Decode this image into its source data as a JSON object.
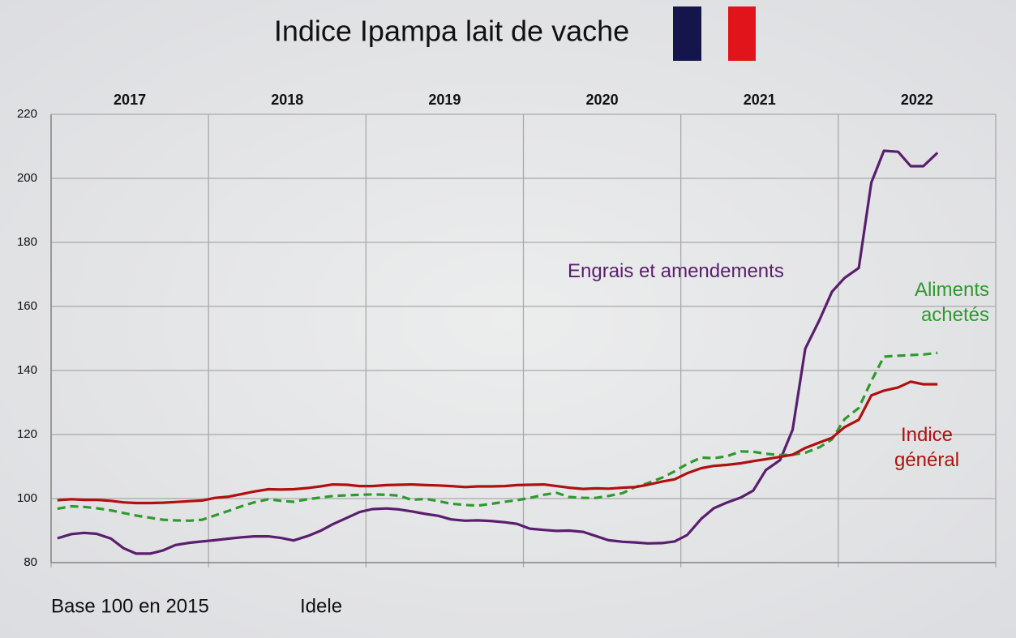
{
  "chart_data": {
    "type": "line",
    "title": "Indice Ipampa lait de vache",
    "xlim": [
      2017,
      2023
    ],
    "xgrid": [
      2017,
      2018,
      2019,
      2020,
      2021,
      2022,
      2023
    ],
    "xticks": [
      {
        "value": 2017.5,
        "label": "2017"
      },
      {
        "value": 2018.5,
        "label": "2018"
      },
      {
        "value": 2019.5,
        "label": "2019"
      },
      {
        "value": 2020.5,
        "label": "2020"
      },
      {
        "value": 2021.5,
        "label": "2021"
      },
      {
        "value": 2022.5,
        "label": "2022"
      }
    ],
    "ylim": [
      80,
      220
    ],
    "yticks": [
      80,
      100,
      120,
      140,
      160,
      180,
      200,
      220
    ],
    "grid": true,
    "x": [
      2017.04,
      2017.13,
      2017.21,
      2017.29,
      2017.38,
      2017.46,
      2017.54,
      2017.63,
      2017.71,
      2017.79,
      2017.88,
      2017.96,
      2018.04,
      2018.13,
      2018.21,
      2018.29,
      2018.38,
      2018.46,
      2018.54,
      2018.63,
      2018.71,
      2018.79,
      2018.88,
      2018.96,
      2019.04,
      2019.13,
      2019.21,
      2019.29,
      2019.38,
      2019.46,
      2019.54,
      2019.63,
      2019.71,
      2019.79,
      2019.88,
      2019.96,
      2020.04,
      2020.13,
      2020.21,
      2020.29,
      2020.38,
      2020.46,
      2020.54,
      2020.63,
      2020.71,
      2020.79,
      2020.88,
      2020.96,
      2021.04,
      2021.13,
      2021.21,
      2021.29,
      2021.38,
      2021.46,
      2021.54,
      2021.63,
      2021.71,
      2021.79,
      2021.88,
      2021.96,
      2022.04,
      2022.13,
      2022.21,
      2022.29,
      2022.38,
      2022.46,
      2022.54,
      2022.63
    ],
    "series": [
      {
        "name": "Engrais et amendements",
        "color": "#5a1e6e",
        "dash": false,
        "values": [
          87.6,
          88.9,
          89.3,
          89.0,
          87.5,
          84.5,
          82.8,
          82.8,
          83.8,
          85.5,
          86.2,
          86.6,
          87.0,
          87.5,
          87.9,
          88.2,
          88.2,
          87.7,
          86.9,
          88.3,
          89.9,
          92.0,
          94.0,
          95.8,
          96.7,
          96.9,
          96.6,
          96.0,
          95.2,
          94.6,
          93.5,
          93.1,
          93.2,
          93.0,
          92.6,
          92.1,
          90.6,
          90.2,
          89.9,
          90.0,
          89.6,
          88.3,
          87.0,
          86.5,
          86.3,
          86.0,
          86.1,
          86.6,
          88.6,
          93.7,
          97.0,
          98.7,
          100.3,
          102.5,
          108.9,
          112.0,
          121.5,
          146.8,
          155.7,
          164.6,
          168.9,
          172.0,
          198.7,
          208.6,
          208.3,
          203.8,
          203.8,
          208.0
        ]
      },
      {
        "name": "Aliments achetés",
        "color": "#2e9a2e",
        "dash": true,
        "values": [
          96.8,
          97.6,
          97.4,
          97.0,
          96.3,
          95.5,
          94.7,
          94.0,
          93.4,
          93.2,
          93.1,
          93.4,
          94.7,
          96.2,
          97.6,
          98.8,
          99.8,
          99.3,
          99.0,
          99.8,
          100.3,
          100.8,
          101.0,
          101.2,
          101.3,
          101.2,
          100.9,
          99.6,
          99.9,
          99.2,
          98.4,
          98.0,
          97.8,
          98.3,
          99.0,
          99.5,
          100.2,
          101.2,
          101.8,
          100.5,
          100.2,
          100.2,
          100.8,
          101.7,
          103.6,
          104.8,
          106.5,
          108.5,
          110.8,
          112.8,
          112.6,
          113.2,
          114.7,
          114.6,
          114.0,
          113.6,
          113.7,
          114.3,
          116.0,
          118.5,
          124.8,
          128.3,
          136.7,
          144.3,
          144.6,
          144.8,
          145.0,
          145.5
        ]
      },
      {
        "name": "Indice général",
        "color": "#b01010",
        "dash": false,
        "values": [
          99.5,
          99.8,
          99.6,
          99.6,
          99.3,
          98.8,
          98.6,
          98.6,
          98.7,
          98.9,
          99.2,
          99.4,
          100.2,
          100.6,
          101.4,
          102.2,
          102.9,
          102.8,
          102.9,
          103.3,
          103.8,
          104.4,
          104.3,
          103.9,
          103.9,
          104.2,
          104.3,
          104.4,
          104.2,
          104.1,
          103.9,
          103.6,
          103.8,
          103.8,
          103.9,
          104.2,
          104.3,
          104.4,
          103.9,
          103.4,
          103.0,
          103.2,
          103.1,
          103.4,
          103.6,
          104.3,
          105.3,
          106.0,
          107.9,
          109.5,
          110.2,
          110.5,
          111.0,
          111.7,
          112.3,
          113.0,
          113.7,
          115.8,
          117.5,
          119.0,
          122.3,
          124.6,
          132.2,
          133.7,
          134.7,
          136.5,
          135.7,
          135.7
        ]
      }
    ],
    "footnotes": [
      "Base 100 en 2015",
      "Idele"
    ]
  }
}
